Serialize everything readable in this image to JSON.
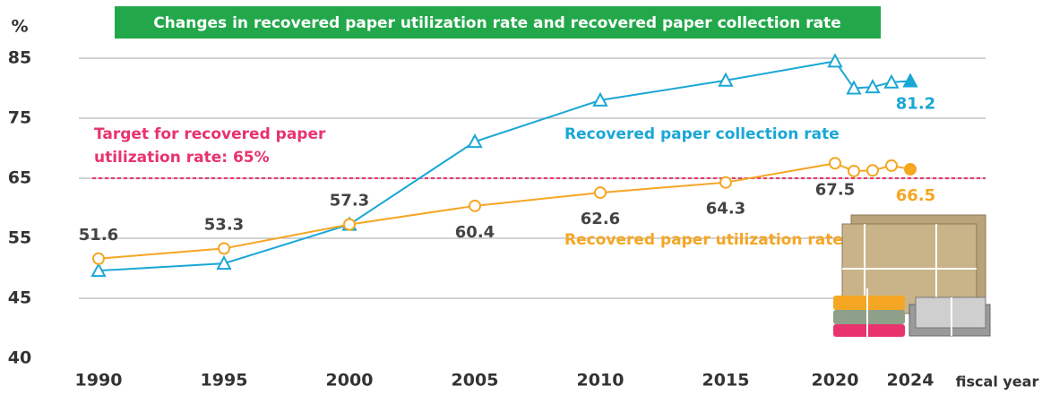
{
  "chart_data": {
    "type": "line",
    "title": "Changes in recovered paper utilization rate and recovered paper collection rate",
    "y_unit": "%",
    "x_label": "fiscal year",
    "categories": [
      "1990",
      "1995",
      "2000",
      "2005",
      "2010",
      "2015",
      "2020",
      null,
      null,
      null,
      "2024"
    ],
    "series": [
      {
        "name": "Recovered paper collection rate",
        "color": "#1aa7d6",
        "marker": "triangle",
        "values": [
          49.6,
          50.8,
          57.3,
          71.1,
          78.0,
          81.3,
          84.5,
          80.0,
          80.2,
          81.0,
          81.2
        ]
      },
      {
        "name": "Recovered paper utilization rate",
        "color": "#f5a623",
        "marker": "circle",
        "values": [
          51.6,
          53.3,
          57.3,
          60.4,
          62.6,
          64.3,
          67.5,
          66.2,
          66.3,
          67.1,
          66.5
        ]
      }
    ],
    "target": 65,
    "target_color": "#e8336d",
    "target_label": [
      "Target for recovered paper",
      "utilization rate: 65%"
    ],
    "ylim": [
      40,
      85
    ],
    "yticks": [
      40,
      45,
      55,
      65,
      75,
      85
    ],
    "grid": true
  }
}
